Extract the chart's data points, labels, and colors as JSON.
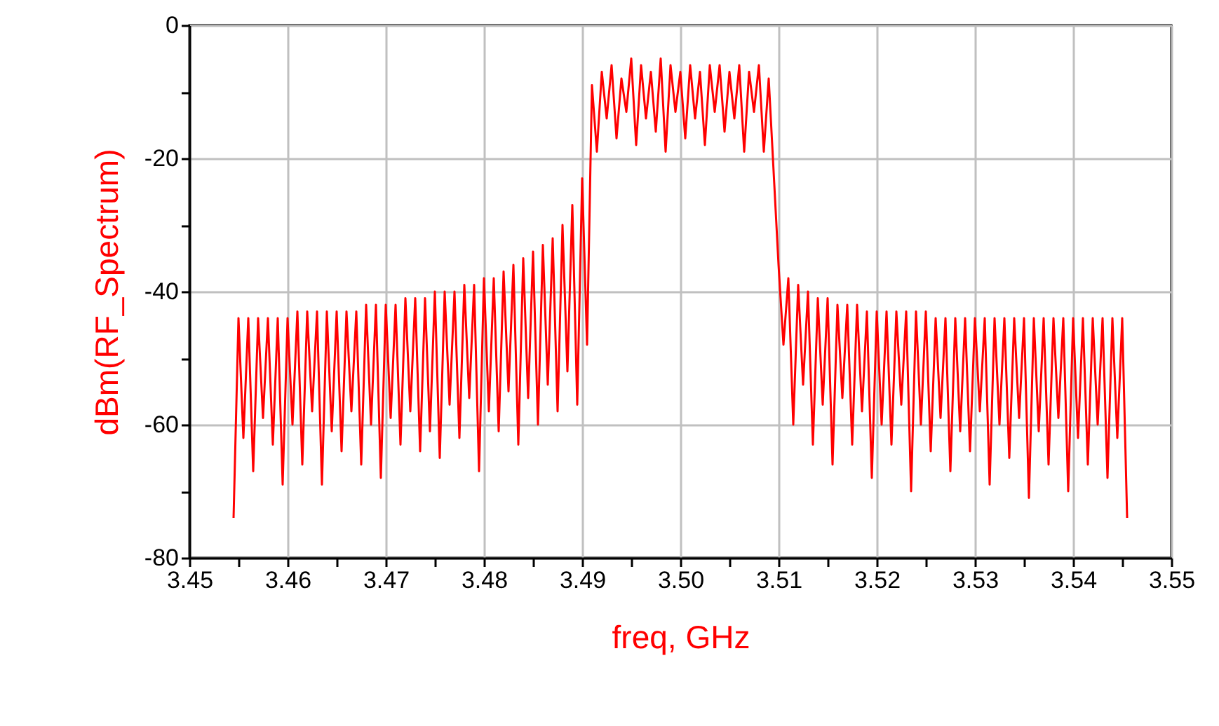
{
  "chart_data": {
    "type": "line",
    "xlabel": "freq, GHz",
    "ylabel": "dBm(RF_Spectrum)",
    "grid": true,
    "xlim": [
      3.45,
      3.55
    ],
    "ylim": [
      -80,
      0
    ],
    "xticks": [
      {
        "value": 3.45,
        "label": "3.45"
      },
      {
        "value": 3.455,
        "label": null
      },
      {
        "value": 3.46,
        "label": "3.46"
      },
      {
        "value": 3.465,
        "label": null
      },
      {
        "value": 3.47,
        "label": "3.47"
      },
      {
        "value": 3.475,
        "label": null
      },
      {
        "value": 3.48,
        "label": "3.48"
      },
      {
        "value": 3.485,
        "label": null
      },
      {
        "value": 3.49,
        "label": "3.49"
      },
      {
        "value": 3.495,
        "label": null
      },
      {
        "value": 3.5,
        "label": "3.50"
      },
      {
        "value": 3.505,
        "label": null
      },
      {
        "value": 3.51,
        "label": "3.51"
      },
      {
        "value": 3.515,
        "label": null
      },
      {
        "value": 3.52,
        "label": "3.52"
      },
      {
        "value": 3.525,
        "label": null
      },
      {
        "value": 3.53,
        "label": "3.53"
      },
      {
        "value": 3.535,
        "label": null
      },
      {
        "value": 3.54,
        "label": "3.54"
      },
      {
        "value": 3.545,
        "label": null
      },
      {
        "value": 3.55,
        "label": "3.55"
      }
    ],
    "yticks": [
      {
        "value": -80,
        "label": "-80"
      },
      {
        "value": -70,
        "label": null
      },
      {
        "value": -60,
        "label": "-60"
      },
      {
        "value": -50,
        "label": null
      },
      {
        "value": -40,
        "label": "-40"
      },
      {
        "value": -30,
        "label": null
      },
      {
        "value": -20,
        "label": "-20"
      },
      {
        "value": -10,
        "label": null
      },
      {
        "value": 0,
        "label": "0"
      }
    ],
    "x": [
      3.4545,
      3.455,
      3.4555,
      3.456,
      3.4565,
      3.457,
      3.4575,
      3.458,
      3.4585,
      3.459,
      3.4595,
      3.46,
      3.4605,
      3.461,
      3.4615,
      3.462,
      3.4625,
      3.463,
      3.4635,
      3.464,
      3.4645,
      3.465,
      3.4655,
      3.466,
      3.4665,
      3.467,
      3.4675,
      3.468,
      3.4685,
      3.469,
      3.4695,
      3.47,
      3.4705,
      3.471,
      3.4715,
      3.472,
      3.4725,
      3.473,
      3.4735,
      3.474,
      3.4745,
      3.475,
      3.4755,
      3.476,
      3.4765,
      3.477,
      3.4775,
      3.478,
      3.4785,
      3.479,
      3.4795,
      3.48,
      3.4805,
      3.481,
      3.4815,
      3.482,
      3.4825,
      3.483,
      3.4835,
      3.484,
      3.4845,
      3.485,
      3.4855,
      3.486,
      3.4865,
      3.487,
      3.4875,
      3.488,
      3.4885,
      3.489,
      3.4895,
      3.49,
      3.4905,
      3.491,
      3.4915,
      3.492,
      3.4925,
      3.493,
      3.4935,
      3.494,
      3.4945,
      3.495,
      3.4955,
      3.496,
      3.4965,
      3.497,
      3.4975,
      3.498,
      3.4985,
      3.499,
      3.4995,
      3.5,
      3.5005,
      3.501,
      3.5015,
      3.502,
      3.5025,
      3.503,
      3.5035,
      3.504,
      3.5045,
      3.505,
      3.5055,
      3.506,
      3.5065,
      3.507,
      3.5075,
      3.508,
      3.5085,
      3.509,
      3.5095,
      3.51,
      3.5105,
      3.511,
      3.5115,
      3.512,
      3.5125,
      3.513,
      3.5135,
      3.514,
      3.5145,
      3.515,
      3.5155,
      3.516,
      3.5165,
      3.517,
      3.5175,
      3.518,
      3.5185,
      3.519,
      3.5195,
      3.52,
      3.5205,
      3.521,
      3.5215,
      3.522,
      3.5225,
      3.523,
      3.5235,
      3.524,
      3.5245,
      3.525,
      3.5255,
      3.526,
      3.5265,
      3.527,
      3.5275,
      3.528,
      3.5285,
      3.529,
      3.5295,
      3.53,
      3.5305,
      3.531,
      3.5315,
      3.532,
      3.5325,
      3.533,
      3.5335,
      3.534,
      3.5345,
      3.535,
      3.5355,
      3.536,
      3.5365,
      3.537,
      3.5375,
      3.538,
      3.5385,
      3.539,
      3.5395,
      3.54,
      3.5405,
      3.541,
      3.5415,
      3.542,
      3.5425,
      3.543,
      3.5435,
      3.544,
      3.5445,
      3.545,
      3.5455
    ],
    "series": [
      {
        "color": "#ff0000",
        "values": [
          -74,
          -44,
          -62,
          -44,
          -67,
          -44,
          -59,
          -44,
          -63,
          -44,
          -69,
          -44,
          -60,
          -43,
          -66,
          -43,
          -58,
          -43,
          -69,
          -43,
          -61,
          -43,
          -64,
          -43,
          -58,
          -43,
          -66,
          -42,
          -60,
          -42,
          -68,
          -42,
          -59,
          -42,
          -63,
          -41,
          -58,
          -41,
          -64,
          -41,
          -61,
          -40,
          -65,
          -40,
          -57,
          -40,
          -62,
          -39,
          -56,
          -39,
          -67,
          -38,
          -58,
          -38,
          -61,
          -37,
          -55,
          -36,
          -63,
          -35,
          -56,
          -34,
          -60,
          -33,
          -54,
          -32,
          -58,
          -30,
          -52,
          -27,
          -57,
          -23,
          -48,
          -9,
          -19,
          -7,
          -14,
          -6,
          -17,
          -8,
          -13,
          -5,
          -18,
          -6,
          -14,
          -7,
          -16,
          -5,
          -19,
          -6,
          -13,
          -7,
          -17,
          -6,
          -14,
          -7,
          -18,
          -6,
          -13,
          -6,
          -16,
          -7,
          -14,
          -6,
          -19,
          -7,
          -13,
          -6,
          -19,
          -8,
          -22,
          -36,
          -48,
          -38,
          -60,
          -39,
          -54,
          -40,
          -63,
          -41,
          -57,
          -41,
          -66,
          -42,
          -56,
          -42,
          -63,
          -42,
          -58,
          -43,
          -68,
          -43,
          -60,
          -43,
          -63,
          -43,
          -57,
          -43,
          -70,
          -43,
          -60,
          -43,
          -64,
          -44,
          -59,
          -44,
          -67,
          -44,
          -61,
          -44,
          -64,
          -44,
          -58,
          -44,
          -69,
          -44,
          -60,
          -44,
          -65,
          -44,
          -59,
          -44,
          -71,
          -44,
          -61,
          -44,
          -66,
          -44,
          -59,
          -44,
          -70,
          -44,
          -62,
          -44,
          -66,
          -44,
          -60,
          -44,
          -68,
          -44,
          -62,
          -44,
          -74
        ]
      }
    ]
  }
}
